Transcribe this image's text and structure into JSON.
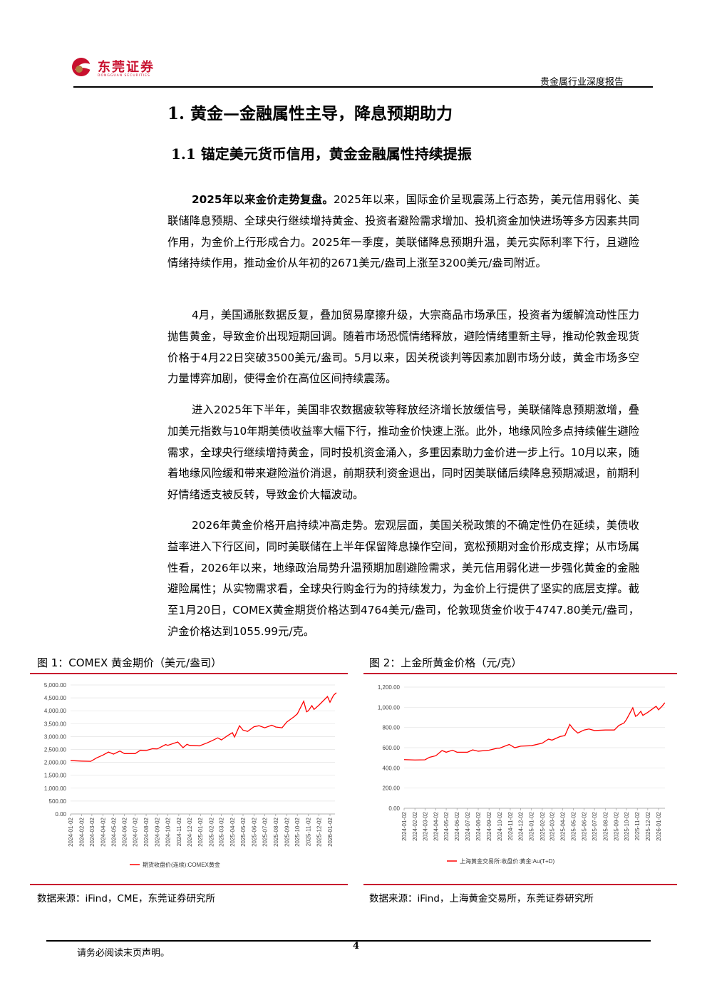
{
  "header": {
    "logo_cn": "东莞证券",
    "logo_en": "DONGGUAN SECURITIES",
    "report_type": "贵金属行业深度报告"
  },
  "section": {
    "h1": "1.  黄金—金融属性主导，降息预期助力",
    "h2": "1.1  锚定美元货币信用，黄金金融属性持续提振"
  },
  "paragraphs": [
    {
      "lead": "2025年以来金价走势复盘。",
      "text": "2025年以来，国际金价呈现震荡上行态势，美元信用弱化、美联储降息预期、全球央行继续增持黄金、投资者避险需求增加、投机资金加快进场等多方因素共同作用，为金价上行形成合力。2025年一季度，美联储降息预期升温，美元实际利率下行，且避险情绪持续作用，推动金价从年初的2671美元/盎司上涨至3200美元/盎司附近。"
    },
    {
      "lead": "",
      "text": "4月，美国通胀数据反复，叠加贸易摩擦升级，大宗商品市场承压，投资者为缓解流动性压力抛售黄金，导致金价出现短期回调。随着市场恐慌情绪释放，避险情绪重新主导，推动伦敦金现货价格于4月22日突破3500美元/盎司。5月以来，因关税谈判等因素加剧市场分歧，黄金市场多空力量博弈加剧，使得金价在高位区间持续震荡。"
    },
    {
      "lead": "",
      "text": "进入2025年下半年，美国非农数据疲软等释放经济增长放缓信号，美联储降息预期激增，叠加美元指数与10年期美债收益率大幅下行，推动金价快速上涨。此外，地缘风险多点持续催生避险需求，全球央行继续增持黄金，同时投机资金涌入，多重因素助力金价进一步上行。10月以来，随着地缘风险缓和带来避险溢价消退，前期获利资金退出，同时因美联储后续降息预期减退，前期利好情绪透支被反转，导致金价大幅波动。"
    },
    {
      "lead": "",
      "text": "2026年黄金价格开启持续冲高走势。宏观层面，美国关税政策的不确定性仍在延续，美债收益率进入下行区间，同时美联储在上半年保留降息操作空间，宽松预期对金价形成支撑；从市场属性看，2026年以来，地缘政治局势升温预期加剧避险需求，美元信用弱化进一步强化黄金的金融避险属性；从实物需求看，全球央行购金行为的持续发力，为金价上行提供了坚实的底层支撑。截至1月20日，COMEX黄金期货价格达到4764美元/盎司，伦敦现货金价收于4747.80美元/盎司，沪金价格达到1055.99元/克。"
    }
  ],
  "figures": [
    {
      "title": "图 1：COMEX 黄金期价（美元/盎司）",
      "source": "数据来源：iFind，CME，东莞证券研究所"
    },
    {
      "title": "图 2：上金所黄金价格（元/克）",
      "source": "数据来源：iFind，上海黄金交易所，东莞证券研究所"
    }
  ],
  "footer": {
    "disclaimer": "请务必阅读末页声明。",
    "page": "4"
  },
  "chart_data": [
    {
      "type": "line",
      "title": "",
      "xlabel": "",
      "ylabel": "",
      "ylim": [
        0,
        5000
      ],
      "grid": true,
      "legend": "bottom",
      "color": "#ff0000",
      "yticks": [
        "0.00",
        "500.00",
        "1,000.00",
        "1,500.00",
        "2,000.00",
        "2,500.00",
        "3,000.00",
        "3,500.00",
        "4,000.00",
        "4,500.00",
        "5,000.00"
      ],
      "xticks": [
        "2024-01-02",
        "2024-02-02",
        "2024-03-02",
        "2024-04-02",
        "2024-05-02",
        "2024-06-02",
        "2024-07-02",
        "2024-08-02",
        "2024-09-02",
        "2024-10-02",
        "2024-11-02",
        "2024-12-02",
        "2025-01-02",
        "2025-02-02",
        "2025-03-02",
        "2025-04-02",
        "2025-05-02",
        "2025-06-02",
        "2025-07-02",
        "2025-08-02",
        "2025-09-02",
        "2025-10-02",
        "2025-11-02",
        "2025-12-02",
        "2026-01-02"
      ],
      "series": [
        {
          "name": "期货收盘价(连续):COMEX黄金",
          "points": [
            [
              "2024-01-02",
              2070
            ],
            [
              "2024-02-02",
              2050
            ],
            [
              "2024-02-28",
              2040
            ],
            [
              "2024-03-15",
              2170
            ],
            [
              "2024-04-02",
              2280
            ],
            [
              "2024-04-18",
              2400
            ],
            [
              "2024-05-02",
              2320
            ],
            [
              "2024-05-20",
              2440
            ],
            [
              "2024-06-02",
              2340
            ],
            [
              "2024-07-02",
              2340
            ],
            [
              "2024-07-17",
              2470
            ],
            [
              "2024-08-02",
              2460
            ],
            [
              "2024-08-20",
              2530
            ],
            [
              "2024-09-02",
              2520
            ],
            [
              "2024-09-26",
              2690
            ],
            [
              "2024-10-02",
              2660
            ],
            [
              "2024-10-30",
              2790
            ],
            [
              "2024-11-14",
              2570
            ],
            [
              "2024-11-25",
              2700
            ],
            [
              "2024-12-02",
              2660
            ],
            [
              "2024-12-30",
              2640
            ],
            [
              "2025-01-20",
              2750
            ],
            [
              "2025-02-02",
              2830
            ],
            [
              "2025-02-20",
              2950
            ],
            [
              "2025-03-02",
              2870
            ],
            [
              "2025-03-20",
              3040
            ],
            [
              "2025-04-02",
              3150
            ],
            [
              "2025-04-08",
              2980
            ],
            [
              "2025-04-22",
              3420
            ],
            [
              "2025-05-02",
              3250
            ],
            [
              "2025-05-15",
              3200
            ],
            [
              "2025-06-02",
              3380
            ],
            [
              "2025-06-16",
              3420
            ],
            [
              "2025-07-02",
              3340
            ],
            [
              "2025-07-22",
              3440
            ],
            [
              "2025-08-02",
              3370
            ],
            [
              "2025-08-20",
              3340
            ],
            [
              "2025-09-02",
              3560
            ],
            [
              "2025-09-22",
              3760
            ],
            [
              "2025-10-02",
              3880
            ],
            [
              "2025-10-20",
              4370
            ],
            [
              "2025-10-28",
              3960
            ],
            [
              "2025-11-02",
              4000
            ],
            [
              "2025-11-12",
              4200
            ],
            [
              "2025-11-18",
              4050
            ],
            [
              "2025-12-02",
              4220
            ],
            [
              "2025-12-26",
              4550
            ],
            [
              "2026-01-02",
              4330
            ],
            [
              "2026-01-12",
              4600
            ],
            [
              "2026-01-20",
              4700
            ]
          ]
        }
      ]
    },
    {
      "type": "line",
      "title": "",
      "xlabel": "",
      "ylabel": "",
      "ylim": [
        0,
        1200
      ],
      "grid": true,
      "legend": "bottom",
      "color": "#ff0000",
      "yticks": [
        "0.00",
        "200.00",
        "400.00",
        "600.00",
        "800.00",
        "1,000.00",
        "1,200.00"
      ],
      "xticks": [
        "2024-01-02",
        "2024-02-02",
        "2024-03-02",
        "2024-04-02",
        "2024-05-02",
        "2024-06-02",
        "2024-07-02",
        "2024-08-02",
        "2024-09-02",
        "2024-10-02",
        "2024-11-02",
        "2024-12-02",
        "2025-01-02",
        "2025-02-02",
        "2025-03-02",
        "2025-04-02",
        "2025-05-02",
        "2025-06-02",
        "2025-07-02",
        "2025-08-02",
        "2025-09-02",
        "2025-10-02",
        "2025-11-02",
        "2025-12-02",
        "2026-01-02"
      ],
      "series": [
        {
          "name": "上海黄金交易所:收盘价:黄金:Au(T+D)",
          "points": [
            [
              "2024-01-02",
              482
            ],
            [
              "2024-02-02",
              478
            ],
            [
              "2024-03-02",
              480
            ],
            [
              "2024-03-15",
              505
            ],
            [
              "2024-04-02",
              520
            ],
            [
              "2024-04-20",
              572
            ],
            [
              "2024-05-02",
              555
            ],
            [
              "2024-05-20",
              575
            ],
            [
              "2024-06-02",
              555
            ],
            [
              "2024-07-02",
              555
            ],
            [
              "2024-07-17",
              578
            ],
            [
              "2024-08-02",
              565
            ],
            [
              "2024-09-02",
              575
            ],
            [
              "2024-09-26",
              595
            ],
            [
              "2024-10-02",
              595
            ],
            [
              "2024-10-30",
              632
            ],
            [
              "2024-11-15",
              600
            ],
            [
              "2024-12-02",
              615
            ],
            [
              "2025-01-02",
              620
            ],
            [
              "2025-02-02",
              645
            ],
            [
              "2025-02-20",
              685
            ],
            [
              "2025-03-02",
              675
            ],
            [
              "2025-03-25",
              710
            ],
            [
              "2025-04-08",
              720
            ],
            [
              "2025-04-22",
              830
            ],
            [
              "2025-05-02",
              785
            ],
            [
              "2025-05-15",
              745
            ],
            [
              "2025-06-02",
              775
            ],
            [
              "2025-06-16",
              785
            ],
            [
              "2025-07-02",
              770
            ],
            [
              "2025-08-02",
              775
            ],
            [
              "2025-08-28",
              775
            ],
            [
              "2025-09-10",
              820
            ],
            [
              "2025-09-25",
              845
            ],
            [
              "2025-10-02",
              880
            ],
            [
              "2025-10-20",
              995
            ],
            [
              "2025-10-28",
              910
            ],
            [
              "2025-11-02",
              920
            ],
            [
              "2025-11-12",
              960
            ],
            [
              "2025-11-18",
              920
            ],
            [
              "2025-12-02",
              950
            ],
            [
              "2025-12-26",
              1010
            ],
            [
              "2026-01-02",
              975
            ],
            [
              "2026-01-12",
              1010
            ],
            [
              "2026-01-20",
              1045
            ]
          ]
        }
      ]
    }
  ]
}
